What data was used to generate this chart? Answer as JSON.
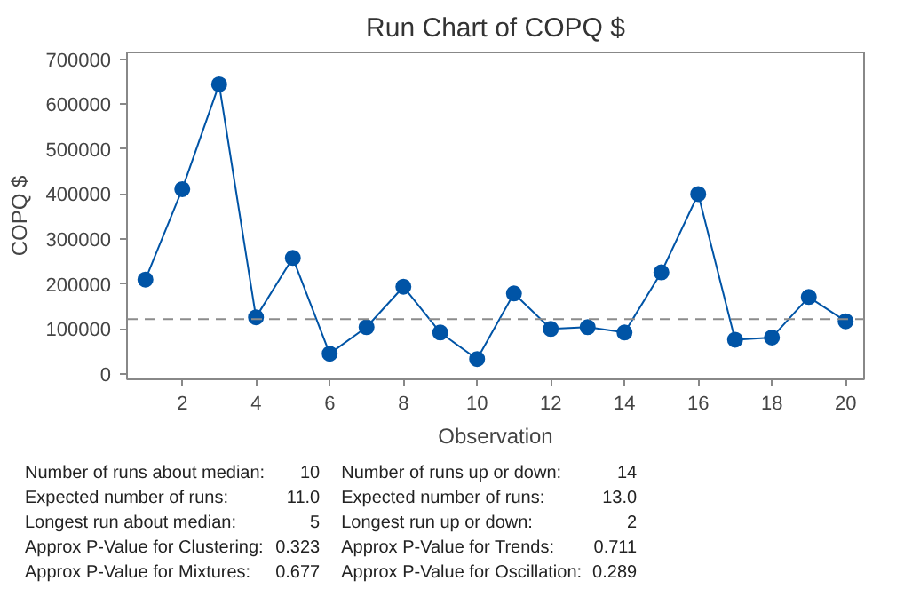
{
  "chart_data": {
    "type": "line",
    "title": "Run Chart of COPQ $",
    "xlabel": "Observation",
    "ylabel": "COPQ $",
    "x": [
      1,
      2,
      3,
      4,
      5,
      6,
      7,
      8,
      9,
      10,
      11,
      12,
      13,
      14,
      15,
      16,
      17,
      18,
      19,
      20
    ],
    "series": [
      {
        "color": "#0054a6",
        "values": [
          210000,
          411000,
          644000,
          126000,
          258000,
          45000,
          104000,
          194000,
          92000,
          33000,
          179000,
          100000,
          104000,
          92000,
          226000,
          400000,
          76000,
          81000,
          171000,
          117000
        ]
      }
    ],
    "marker": "circle",
    "line_style": "solid",
    "grid": false,
    "xlim": [
      0.5,
      20.5
    ],
    "xticks": [
      2,
      4,
      6,
      8,
      10,
      12,
      14,
      16,
      18,
      20
    ],
    "ylim": [
      -12000,
      715000
    ],
    "yticks": [
      0,
      100000,
      200000,
      300000,
      400000,
      500000,
      600000,
      700000
    ],
    "ref_lines": [
      {
        "axis": "y",
        "value": 122000,
        "color": "#8c8c8c",
        "line_style": "dashed"
      }
    ],
    "annotations": [
      "Number of runs about median: 10",
      "Expected number of runs: 11.0",
      "Longest run about median: 5",
      "Approx P-Value for Clustering: 0.323",
      "Approx P-Value for Mixtures: 0.677",
      "Number of runs up or down: 14",
      "Expected number of runs: 13.0",
      "Longest run up or down: 2",
      "Approx P-Value for Trends: 0.711",
      "Approx P-Value for Oscillation: 0.289"
    ]
  }
}
